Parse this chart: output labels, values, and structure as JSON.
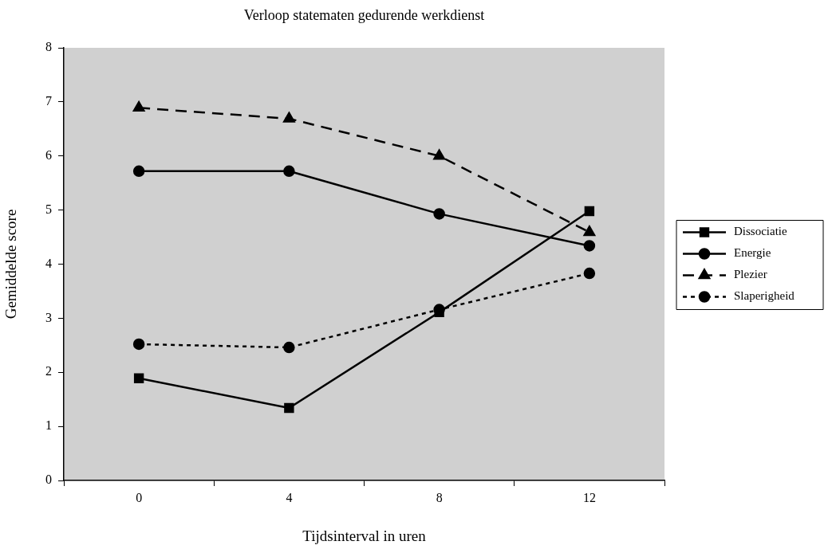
{
  "chart_data": {
    "type": "line",
    "title": "Verloop statematen gedurende werkdienst",
    "xlabel": "Tijdsinterval in uren",
    "ylabel": "Gemiddelde score",
    "categories": [
      "0",
      "4",
      "8",
      "12"
    ],
    "ylim": [
      0,
      8
    ],
    "yticks": [
      0,
      1,
      2,
      3,
      4,
      5,
      6,
      7,
      8
    ],
    "legend": "right",
    "series": [
      {
        "name": "Dissociatie",
        "color": "#000000",
        "marker": "square",
        "line_style": "solid",
        "values": [
          1.89,
          1.34,
          3.11,
          4.98
        ]
      },
      {
        "name": "Energie",
        "color": "#000000",
        "marker": "circle",
        "line_style": "solid",
        "values": [
          5.72,
          5.72,
          4.93,
          4.34
        ]
      },
      {
        "name": "Plezier",
        "color": "#000000",
        "marker": "triangle",
        "line_style": "dashed",
        "values": [
          6.89,
          6.69,
          6.0,
          4.59
        ]
      },
      {
        "name": "Slaperigheid",
        "color": "#000000",
        "marker": "circle",
        "line_style": "dotted",
        "values": [
          2.52,
          2.46,
          3.16,
          3.83
        ]
      }
    ]
  }
}
